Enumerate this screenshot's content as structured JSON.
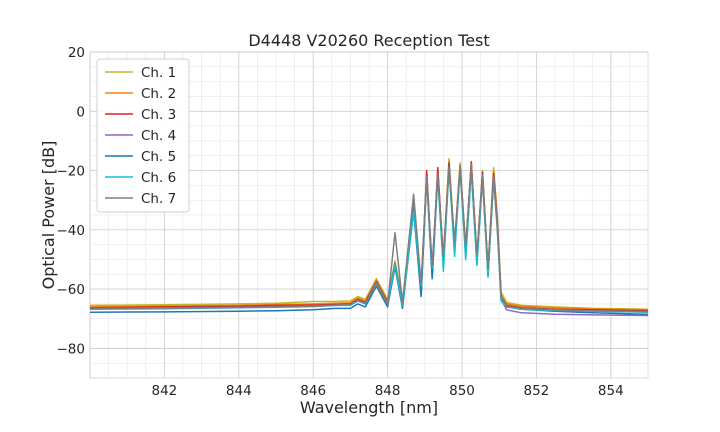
{
  "chart_data": {
    "type": "line",
    "title": "D4448 V20260 Reception Test",
    "xlabel": "Wavelength [nm]",
    "ylabel": "Optical Power [dB]",
    "xlim": [
      840.0,
      855.0
    ],
    "ylim": [
      -90,
      20
    ],
    "xticks": [
      842,
      844,
      846,
      848,
      850,
      852,
      854
    ],
    "yticks": [
      -80,
      -60,
      -40,
      -20,
      0,
      20
    ],
    "grid": true,
    "legend_position": "top-left",
    "series": [
      {
        "name": "Ch. 1",
        "color": "#bcbd22",
        "x": [
          840.0,
          842.0,
          844.0,
          845.0,
          846.0,
          846.6,
          847.0,
          847.2,
          847.4,
          847.7,
          848.0,
          848.2,
          848.4,
          848.7,
          848.9,
          849.05,
          849.2,
          849.35,
          849.5,
          849.65,
          849.8,
          849.95,
          850.1,
          850.25,
          850.4,
          850.55,
          850.7,
          850.85,
          850.95,
          851.05,
          851.2,
          851.6,
          852.5,
          853.5,
          855.0
        ],
        "y": [
          -65.5,
          -65.3,
          -65.0,
          -64.8,
          -64.2,
          -64.2,
          -64.0,
          -62.5,
          -63.5,
          -56.5,
          -63.5,
          -50.5,
          -64.0,
          -32.0,
          -60.0,
          -20.5,
          -54.0,
          -19.5,
          -50.0,
          -16.0,
          -45.0,
          -17.5,
          -46.0,
          -17.5,
          -49.0,
          -20.0,
          -53.0,
          -19.0,
          -35.0,
          -61.0,
          -64.5,
          -65.5,
          -66.0,
          -66.5,
          -66.8
        ]
      },
      {
        "name": "Ch. 2",
        "color": "#ff7f0e",
        "x": [
          840.0,
          842.0,
          844.0,
          845.0,
          846.0,
          846.6,
          847.0,
          847.2,
          847.4,
          847.7,
          848.0,
          848.2,
          848.4,
          848.7,
          848.9,
          849.05,
          849.2,
          849.35,
          849.5,
          849.65,
          849.8,
          849.95,
          850.1,
          850.25,
          850.4,
          850.55,
          850.7,
          850.85,
          850.95,
          851.05,
          851.2,
          851.6,
          852.5,
          853.5,
          855.0
        ],
        "y": [
          -66.0,
          -65.7,
          -65.5,
          -65.2,
          -65.0,
          -64.8,
          -64.6,
          -63.0,
          -64.0,
          -57.0,
          -64.0,
          -51.0,
          -64.5,
          -32.5,
          -60.5,
          -21.0,
          -54.5,
          -20.0,
          -50.5,
          -17.0,
          -45.5,
          -18.0,
          -46.5,
          -18.0,
          -49.5,
          -20.5,
          -53.5,
          -20.0,
          -36.0,
          -62.0,
          -65.0,
          -65.8,
          -66.3,
          -66.6,
          -67.0
        ]
      },
      {
        "name": "Ch. 3",
        "color": "#d62728",
        "x": [
          840.0,
          842.0,
          844.0,
          845.0,
          846.0,
          846.6,
          847.0,
          847.2,
          847.4,
          847.7,
          848.0,
          848.2,
          848.4,
          848.7,
          848.9,
          849.05,
          849.2,
          849.35,
          849.5,
          849.65,
          849.8,
          849.95,
          850.1,
          850.25,
          850.4,
          850.55,
          850.7,
          850.85,
          850.95,
          851.05,
          851.2,
          851.6,
          852.5,
          853.5,
          855.0
        ],
        "y": [
          -66.3,
          -66.0,
          -65.8,
          -65.5,
          -65.4,
          -65.2,
          -65.0,
          -63.5,
          -64.5,
          -57.5,
          -64.5,
          -51.5,
          -65.0,
          -33.0,
          -61.0,
          -20.0,
          -55.0,
          -19.0,
          -51.0,
          -17.5,
          -46.0,
          -18.5,
          -47.0,
          -17.0,
          -50.0,
          -20.5,
          -54.0,
          -21.0,
          -37.0,
          -62.5,
          -65.5,
          -66.3,
          -66.8,
          -67.0,
          -67.3
        ]
      },
      {
        "name": "Ch. 4",
        "color": "#9467bd",
        "x": [
          840.0,
          842.0,
          844.0,
          845.0,
          846.0,
          846.6,
          847.0,
          847.2,
          847.4,
          847.7,
          848.0,
          848.2,
          848.4,
          848.7,
          848.9,
          849.05,
          849.2,
          849.35,
          849.5,
          849.65,
          849.8,
          849.95,
          850.1,
          850.25,
          850.4,
          850.55,
          850.7,
          850.85,
          850.95,
          851.05,
          851.2,
          851.6,
          852.5,
          853.5,
          855.0
        ],
        "y": [
          -66.5,
          -66.3,
          -66.1,
          -65.9,
          -65.7,
          -65.5,
          -65.3,
          -64.0,
          -64.8,
          -58.0,
          -65.0,
          -52.0,
          -65.5,
          -30.5,
          -62.0,
          -22.0,
          -56.0,
          -21.0,
          -52.0,
          -18.5,
          -47.0,
          -19.5,
          -48.0,
          -19.0,
          -51.0,
          -21.5,
          -55.0,
          -22.0,
          -38.0,
          -63.5,
          -67.0,
          -68.0,
          -68.5,
          -68.7,
          -68.9
        ]
      },
      {
        "name": "Ch. 5",
        "color": "#1f77b4",
        "x": [
          840.0,
          842.0,
          844.0,
          845.0,
          846.0,
          846.6,
          847.0,
          847.2,
          847.4,
          847.7,
          848.0,
          848.2,
          848.4,
          848.7,
          848.9,
          849.05,
          849.2,
          849.35,
          849.5,
          849.65,
          849.8,
          849.95,
          850.1,
          850.25,
          850.4,
          850.55,
          850.7,
          850.85,
          850.95,
          851.05,
          851.2,
          851.6,
          852.5,
          853.5,
          855.0
        ],
        "y": [
          -67.8,
          -67.7,
          -67.5,
          -67.3,
          -67.0,
          -66.5,
          -66.5,
          -65.0,
          -66.0,
          -59.0,
          -66.0,
          -52.5,
          -66.5,
          -33.5,
          -62.5,
          -22.5,
          -56.5,
          -21.5,
          -52.5,
          -18.5,
          -47.5,
          -19.0,
          -48.5,
          -19.5,
          -51.5,
          -22.0,
          -55.5,
          -22.5,
          -39.0,
          -63.0,
          -66.0,
          -66.8,
          -67.5,
          -68.0,
          -68.5
        ]
      },
      {
        "name": "Ch. 6",
        "color": "#17becf",
        "x": [
          840.0,
          842.0,
          844.0,
          845.0,
          846.0,
          846.6,
          847.0,
          847.2,
          847.4,
          847.7,
          848.0,
          848.2,
          848.4,
          848.7,
          848.9,
          849.05,
          849.2,
          849.35,
          849.5,
          849.65,
          849.8,
          849.95,
          850.1,
          850.25,
          850.4,
          850.55,
          850.7,
          850.85,
          850.95,
          851.05,
          851.2,
          851.6,
          852.5,
          853.5,
          855.0
        ],
        "y": [
          -66.8,
          -66.6,
          -66.3,
          -66.1,
          -65.9,
          -65.5,
          -65.5,
          -64.0,
          -65.0,
          -58.0,
          -65.0,
          -51.5,
          -65.5,
          -34.0,
          -59.0,
          -23.0,
          -53.0,
          -22.0,
          -54.0,
          -19.0,
          -49.0,
          -19.0,
          -50.0,
          -20.0,
          -52.0,
          -22.5,
          -56.0,
          -23.0,
          -40.0,
          -64.0,
          -66.0,
          -66.8,
          -67.2,
          -67.5,
          -67.8
        ]
      },
      {
        "name": "Ch. 7",
        "color": "#7f7f7f",
        "x": [
          840.0,
          842.0,
          844.0,
          845.0,
          846.0,
          846.6,
          847.0,
          847.2,
          847.4,
          847.7,
          848.0,
          848.2,
          848.4,
          848.7,
          848.9,
          849.05,
          849.2,
          849.35,
          849.5,
          849.65,
          849.8,
          849.95,
          850.1,
          850.25,
          850.4,
          850.55,
          850.7,
          850.85,
          850.95,
          851.05,
          851.2,
          851.6,
          852.5,
          853.5,
          855.0
        ],
        "y": [
          -66.6,
          -66.4,
          -66.2,
          -66.0,
          -65.8,
          -65.4,
          -65.2,
          -63.8,
          -64.8,
          -58.5,
          -65.0,
          -41.0,
          -64.5,
          -28.0,
          -58.0,
          -22.5,
          -52.0,
          -21.5,
          -49.0,
          -19.0,
          -44.0,
          -18.5,
          -45.5,
          -18.0,
          -48.5,
          -21.5,
          -53.0,
          -23.0,
          -38.5,
          -62.5,
          -65.8,
          -66.5,
          -67.0,
          -67.3,
          -67.6
        ]
      }
    ]
  }
}
